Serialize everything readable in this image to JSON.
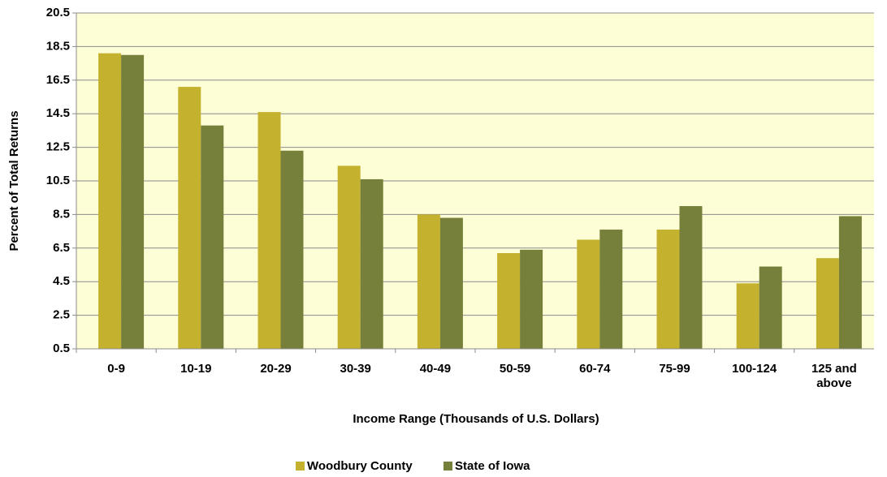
{
  "chart_data": {
    "type": "bar",
    "x_label": "Income Range (Thousands of U.S. Dollars)",
    "y_label": "Percent of Total Returns",
    "categories": [
      "0-9",
      "10-19",
      "20-29",
      "30-39",
      "40-49",
      "50-59",
      "60-74",
      "75-99",
      "100-124",
      "125 and above"
    ],
    "series": [
      {
        "name": "Woodbury County",
        "color": "#c4b22e",
        "values": [
          18.1,
          16.1,
          14.6,
          11.4,
          8.5,
          6.2,
          7.0,
          7.6,
          4.4,
          5.9
        ]
      },
      {
        "name": "State of Iowa",
        "color": "#76803a",
        "values": [
          18.0,
          13.8,
          12.3,
          10.6,
          8.3,
          6.4,
          7.6,
          9.0,
          5.4,
          8.4
        ]
      }
    ],
    "ylim": [
      0.5,
      20.5
    ],
    "yticks": [
      0.5,
      2.5,
      4.5,
      6.5,
      8.5,
      10.5,
      12.5,
      14.5,
      16.5,
      18.5,
      20.5
    ],
    "grid": true,
    "legend": "bottom"
  }
}
